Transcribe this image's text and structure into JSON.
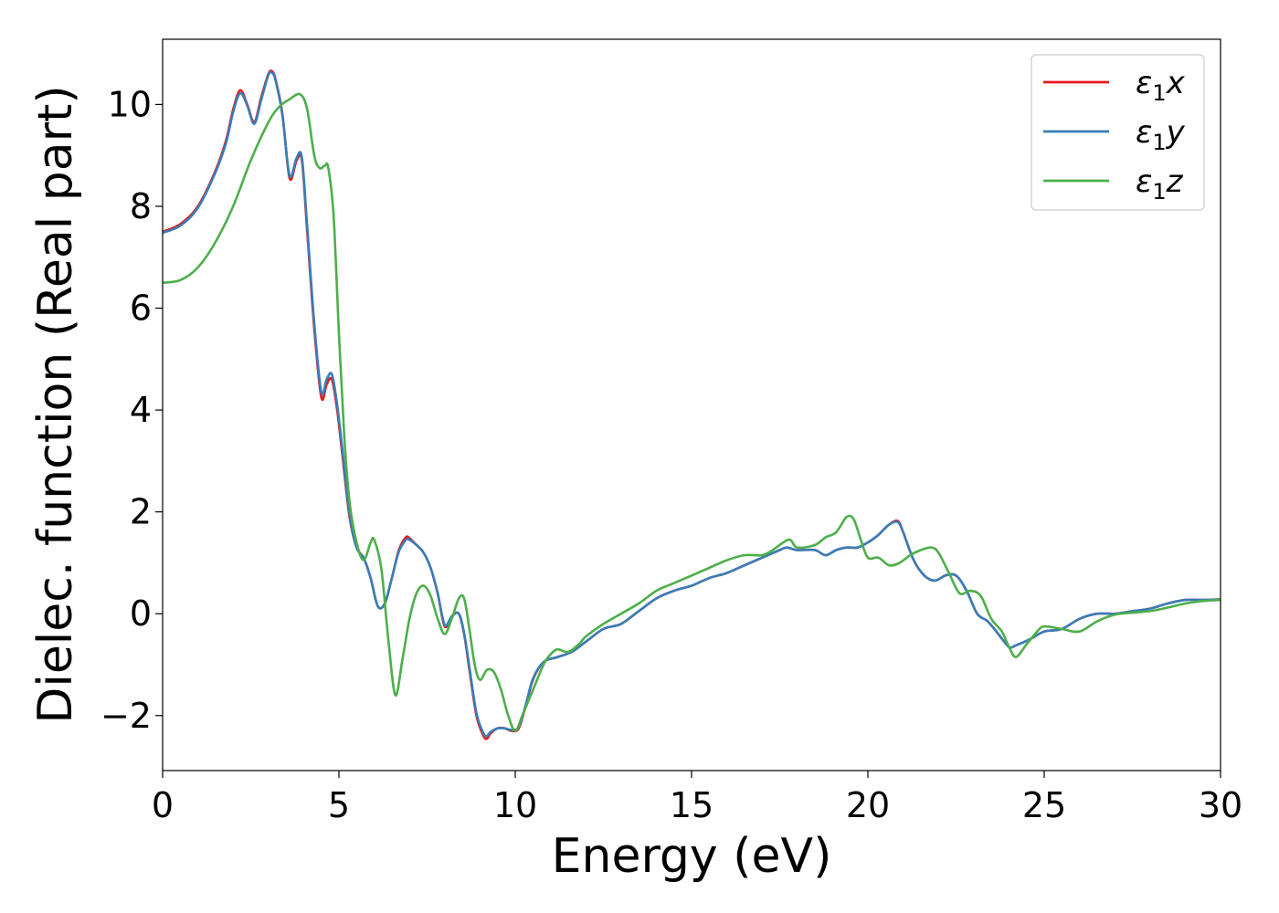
{
  "chart_data": {
    "type": "line",
    "xlabel": "Energy (eV)",
    "ylabel": "Dielec. function (Real part)",
    "xlim": [
      0,
      30
    ],
    "ylim": [
      -3.08,
      11.28
    ],
    "xticks": [
      0,
      5,
      10,
      15,
      20,
      25,
      30
    ],
    "yticks": [
      -2,
      0,
      2,
      4,
      6,
      8,
      10
    ],
    "xtick_labels": [
      "0",
      "5",
      "10",
      "15",
      "20",
      "25",
      "30"
    ],
    "ytick_labels": [
      "−2",
      "0",
      "2",
      "4",
      "6",
      "8",
      "10"
    ],
    "grid": false,
    "legend_position": "top-right",
    "series": [
      {
        "name": "ε1x",
        "label_base": "ε",
        "label_sub": "1",
        "label_var": "x",
        "color": "#e41a1c",
        "x": [
          0,
          0.5,
          1.0,
          1.5,
          1.8,
          2.0,
          2.2,
          2.4,
          2.6,
          2.8,
          3.0,
          3.1,
          3.2,
          3.4,
          3.6,
          3.8,
          3.95,
          4.1,
          4.3,
          4.5,
          4.65,
          4.8,
          4.95,
          5.1,
          5.3,
          5.5,
          5.7,
          5.9,
          6.1,
          6.3,
          6.5,
          6.7,
          6.9,
          7.0,
          7.2,
          7.4,
          7.6,
          7.8,
          8.0,
          8.2,
          8.4,
          8.55,
          8.7,
          8.9,
          9.1,
          9.2,
          9.3,
          9.5,
          9.7,
          9.9,
          10.1,
          10.3,
          10.5,
          10.8,
          11.2,
          11.6,
          12.0,
          12.5,
          13.0,
          13.5,
          14.0,
          14.5,
          15.0,
          15.5,
          16.0,
          16.5,
          17.0,
          17.5,
          17.7,
          18.0,
          18.5,
          18.8,
          19.1,
          19.4,
          19.7,
          20.0,
          20.3,
          20.6,
          20.85,
          21.0,
          21.3,
          21.6,
          21.9,
          22.2,
          22.5,
          22.8,
          23.1,
          23.4,
          23.7,
          24.0,
          24.2,
          24.6,
          25.0,
          25.5,
          26.0,
          26.5,
          27.0,
          27.5,
          28.0,
          28.5,
          29.0,
          29.5,
          30.0
        ],
        "y": [
          7.5,
          7.65,
          8.0,
          8.7,
          9.3,
          9.9,
          10.28,
          10.0,
          9.65,
          10.15,
          10.6,
          10.65,
          10.5,
          9.8,
          8.55,
          8.9,
          8.9,
          7.5,
          5.6,
          4.25,
          4.5,
          4.6,
          4.0,
          3.1,
          1.9,
          1.3,
          1.1,
          0.7,
          0.15,
          0.2,
          0.7,
          1.25,
          1.5,
          1.48,
          1.35,
          1.2,
          0.9,
          0.4,
          -0.25,
          -0.05,
          0.0,
          -0.4,
          -1.1,
          -2.0,
          -2.4,
          -2.45,
          -2.35,
          -2.25,
          -2.25,
          -2.3,
          -2.25,
          -1.8,
          -1.3,
          -0.95,
          -0.85,
          -0.75,
          -0.55,
          -0.3,
          -0.2,
          0.05,
          0.3,
          0.45,
          0.55,
          0.7,
          0.8,
          0.95,
          1.1,
          1.25,
          1.3,
          1.25,
          1.25,
          1.15,
          1.25,
          1.3,
          1.3,
          1.4,
          1.55,
          1.75,
          1.82,
          1.6,
          1.05,
          0.75,
          0.65,
          0.75,
          0.75,
          0.45,
          0.0,
          -0.15,
          -0.4,
          -0.65,
          -0.62,
          -0.5,
          -0.35,
          -0.3,
          -0.1,
          0.0,
          0.0,
          0.05,
          0.1,
          0.2,
          0.27,
          0.27,
          0.28
        ]
      },
      {
        "name": "ε1y",
        "label_base": "ε",
        "label_sub": "1",
        "label_var": "y",
        "color": "#377eb8",
        "x": [
          0,
          0.5,
          1.0,
          1.5,
          1.8,
          2.0,
          2.2,
          2.4,
          2.6,
          2.8,
          3.0,
          3.1,
          3.2,
          3.4,
          3.6,
          3.8,
          3.95,
          4.1,
          4.3,
          4.5,
          4.65,
          4.8,
          4.95,
          5.1,
          5.3,
          5.5,
          5.7,
          5.9,
          6.1,
          6.3,
          6.5,
          6.7,
          6.9,
          7.0,
          7.2,
          7.4,
          7.6,
          7.8,
          8.0,
          8.2,
          8.4,
          8.55,
          8.7,
          8.9,
          9.1,
          9.2,
          9.3,
          9.5,
          9.7,
          9.9,
          10.1,
          10.3,
          10.5,
          10.8,
          11.2,
          11.6,
          12.0,
          12.5,
          13.0,
          13.5,
          14.0,
          14.5,
          15.0,
          15.5,
          16.0,
          16.5,
          17.0,
          17.5,
          17.7,
          18.0,
          18.5,
          18.8,
          19.1,
          19.4,
          19.7,
          20.0,
          20.3,
          20.6,
          20.85,
          21.0,
          21.3,
          21.6,
          21.9,
          22.2,
          22.5,
          22.8,
          23.1,
          23.4,
          23.7,
          24.0,
          24.2,
          24.6,
          25.0,
          25.5,
          26.0,
          26.5,
          27.0,
          27.5,
          28.0,
          28.5,
          29.0,
          29.5,
          30.0
        ],
        "y": [
          7.48,
          7.62,
          7.97,
          8.67,
          9.25,
          9.85,
          10.22,
          9.98,
          9.62,
          10.1,
          10.58,
          10.62,
          10.48,
          9.78,
          8.6,
          8.95,
          8.95,
          7.6,
          5.7,
          4.35,
          4.6,
          4.7,
          4.1,
          3.2,
          1.95,
          1.3,
          1.1,
          0.7,
          0.15,
          0.2,
          0.7,
          1.22,
          1.45,
          1.45,
          1.35,
          1.2,
          0.9,
          0.4,
          -0.22,
          -0.05,
          0.0,
          -0.38,
          -1.05,
          -1.95,
          -2.35,
          -2.4,
          -2.32,
          -2.25,
          -2.25,
          -2.28,
          -2.22,
          -1.78,
          -1.28,
          -0.95,
          -0.85,
          -0.75,
          -0.55,
          -0.3,
          -0.2,
          0.05,
          0.3,
          0.45,
          0.55,
          0.7,
          0.8,
          0.95,
          1.1,
          1.25,
          1.3,
          1.25,
          1.25,
          1.15,
          1.25,
          1.3,
          1.3,
          1.4,
          1.55,
          1.75,
          1.8,
          1.6,
          1.05,
          0.75,
          0.65,
          0.75,
          0.75,
          0.45,
          0.0,
          -0.15,
          -0.4,
          -0.65,
          -0.62,
          -0.5,
          -0.35,
          -0.3,
          -0.1,
          0.0,
          0.0,
          0.05,
          0.1,
          0.2,
          0.27,
          0.27,
          0.28
        ]
      },
      {
        "name": "ε1z",
        "label_base": "ε",
        "label_sub": "1",
        "label_var": "z",
        "color": "#4daf4a",
        "x": [
          0,
          0.5,
          1.0,
          1.5,
          2.0,
          2.5,
          3.0,
          3.3,
          3.6,
          3.9,
          4.1,
          4.3,
          4.45,
          4.6,
          4.7,
          4.85,
          5.0,
          5.15,
          5.3,
          5.5,
          5.7,
          5.9,
          6.0,
          6.2,
          6.4,
          6.6,
          6.8,
          7.0,
          7.2,
          7.4,
          7.6,
          7.8,
          8.0,
          8.2,
          8.4,
          8.55,
          8.7,
          8.85,
          9.0,
          9.2,
          9.4,
          9.6,
          9.8,
          10.0,
          10.2,
          10.5,
          10.8,
          11.0,
          11.2,
          11.5,
          11.8,
          12.0,
          12.5,
          13.0,
          13.5,
          14.0,
          14.5,
          15.0,
          15.5,
          16.0,
          16.5,
          17.0,
          17.3,
          17.6,
          17.8,
          18.0,
          18.5,
          18.8,
          19.1,
          19.4,
          19.6,
          19.8,
          20.0,
          20.3,
          20.6,
          20.9,
          21.2,
          21.5,
          21.8,
          22.0,
          22.3,
          22.6,
          22.9,
          23.2,
          23.5,
          23.8,
          24.0,
          24.2,
          24.5,
          24.8,
          25.0,
          25.5,
          26.0,
          26.5,
          27.0,
          27.5,
          28.0,
          28.5,
          29.0,
          29.5,
          30.0
        ],
        "y": [
          6.5,
          6.55,
          6.8,
          7.3,
          8.0,
          8.9,
          9.65,
          9.95,
          10.1,
          10.2,
          9.9,
          9.0,
          8.75,
          8.8,
          8.75,
          7.8,
          5.5,
          3.5,
          2.2,
          1.4,
          1.05,
          1.4,
          1.45,
          0.9,
          -0.5,
          -1.6,
          -0.9,
          -0.1,
          0.4,
          0.55,
          0.35,
          -0.1,
          -0.4,
          -0.1,
          0.3,
          0.3,
          -0.3,
          -1.0,
          -1.3,
          -1.1,
          -1.15,
          -1.5,
          -2.0,
          -2.3,
          -2.0,
          -1.5,
          -1.0,
          -0.8,
          -0.7,
          -0.75,
          -0.6,
          -0.45,
          -0.2,
          0.0,
          0.2,
          0.45,
          0.6,
          0.75,
          0.9,
          1.05,
          1.15,
          1.15,
          1.25,
          1.4,
          1.45,
          1.3,
          1.35,
          1.5,
          1.6,
          1.9,
          1.85,
          1.45,
          1.1,
          1.1,
          0.95,
          1.0,
          1.15,
          1.25,
          1.3,
          1.2,
          0.8,
          0.4,
          0.45,
          0.35,
          -0.1,
          -0.35,
          -0.65,
          -0.85,
          -0.6,
          -0.35,
          -0.25,
          -0.3,
          -0.35,
          -0.15,
          -0.02,
          0.02,
          0.05,
          0.12,
          0.2,
          0.25,
          0.27
        ]
      }
    ]
  }
}
